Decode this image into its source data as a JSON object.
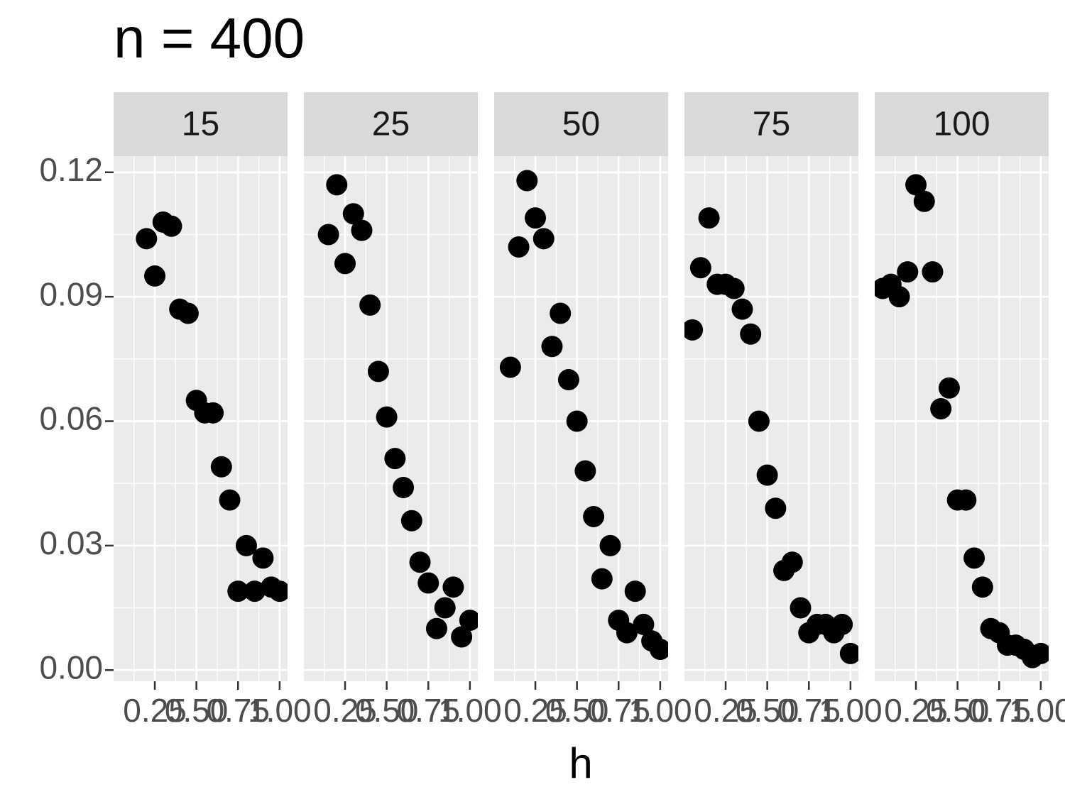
{
  "chart_data": {
    "type": "scatter",
    "title": "n = 400",
    "x_label": "h",
    "color": "#000000",
    "xlim": [
      0.0025,
      1.0475
    ],
    "ylim": [
      -0.0027,
      0.1239
    ],
    "xticks": [
      {
        "value": 0.25,
        "label": "0.25"
      },
      {
        "value": 0.5,
        "label": "0.50"
      },
      {
        "value": 0.75,
        "label": "0.75"
      },
      {
        "value": 1,
        "label": "1.00"
      }
    ],
    "yticks": [
      {
        "value": 0,
        "label": "0.00"
      },
      0.03,
      0.06,
      0.09,
      0.12
    ],
    "x_minor_breaks": [
      0.125,
      0.375,
      0.625,
      0.875
    ],
    "y_minor_breaks": [
      0.015,
      0.045,
      0.075,
      0.105
    ],
    "grid": true,
    "facets": [
      {
        "label": "15",
        "x": [
          0.2,
          0.25,
          0.3,
          0.35,
          0.4,
          0.45,
          0.5,
          0.55,
          0.6,
          0.65,
          0.7,
          0.75,
          0.8,
          0.85,
          0.9,
          0.95,
          1.0
        ],
        "values": [
          0.104,
          0.095,
          0.108,
          0.107,
          0.087,
          0.086,
          0.065,
          0.062,
          0.062,
          0.049,
          0.041,
          0.019,
          0.03,
          0.019,
          0.027,
          0.02,
          0.019
        ]
      },
      {
        "label": "25",
        "x": [
          0.15,
          0.2,
          0.25,
          0.3,
          0.35,
          0.4,
          0.45,
          0.5,
          0.55,
          0.6,
          0.65,
          0.7,
          0.75,
          0.8,
          0.85,
          0.9,
          0.95,
          1.0
        ],
        "values": [
          0.105,
          0.117,
          0.098,
          0.11,
          0.106,
          0.088,
          0.072,
          0.061,
          0.051,
          0.044,
          0.036,
          0.026,
          0.021,
          0.01,
          0.015,
          0.02,
          0.008,
          0.012
        ]
      },
      {
        "label": "50",
        "x": [
          0.1,
          0.15,
          0.2,
          0.25,
          0.3,
          0.35,
          0.4,
          0.45,
          0.5,
          0.55,
          0.6,
          0.65,
          0.7,
          0.75,
          0.8,
          0.85,
          0.9,
          0.95,
          1.0
        ],
        "values": [
          0.073,
          0.102,
          0.118,
          0.109,
          0.104,
          0.078,
          0.086,
          0.07,
          0.06,
          0.048,
          0.037,
          0.022,
          0.03,
          0.012,
          0.009,
          0.019,
          0.011,
          0.007,
          0.005
        ]
      },
      {
        "label": "75",
        "x": [
          0.05,
          0.1,
          0.15,
          0.2,
          0.25,
          0.3,
          0.35,
          0.4,
          0.45,
          0.5,
          0.55,
          0.6,
          0.65,
          0.7,
          0.75,
          0.8,
          0.85,
          0.9,
          0.95,
          1.0
        ],
        "values": [
          0.082,
          0.097,
          0.109,
          0.093,
          0.093,
          0.092,
          0.087,
          0.081,
          0.06,
          0.047,
          0.039,
          0.024,
          0.026,
          0.015,
          0.009,
          0.011,
          0.011,
          0.009,
          0.011,
          0.004
        ]
      },
      {
        "label": "100",
        "x": [
          0.05,
          0.1,
          0.15,
          0.2,
          0.25,
          0.3,
          0.35,
          0.4,
          0.45,
          0.5,
          0.55,
          0.6,
          0.65,
          0.7,
          0.75,
          0.8,
          0.85,
          0.9,
          0.95,
          1.0
        ],
        "values": [
          0.092,
          0.093,
          0.09,
          0.096,
          0.117,
          0.113,
          0.096,
          0.063,
          0.068,
          0.041,
          0.041,
          0.027,
          0.02,
          0.01,
          0.009,
          0.006,
          0.006,
          0.005,
          0.003,
          0.004
        ]
      }
    ]
  }
}
